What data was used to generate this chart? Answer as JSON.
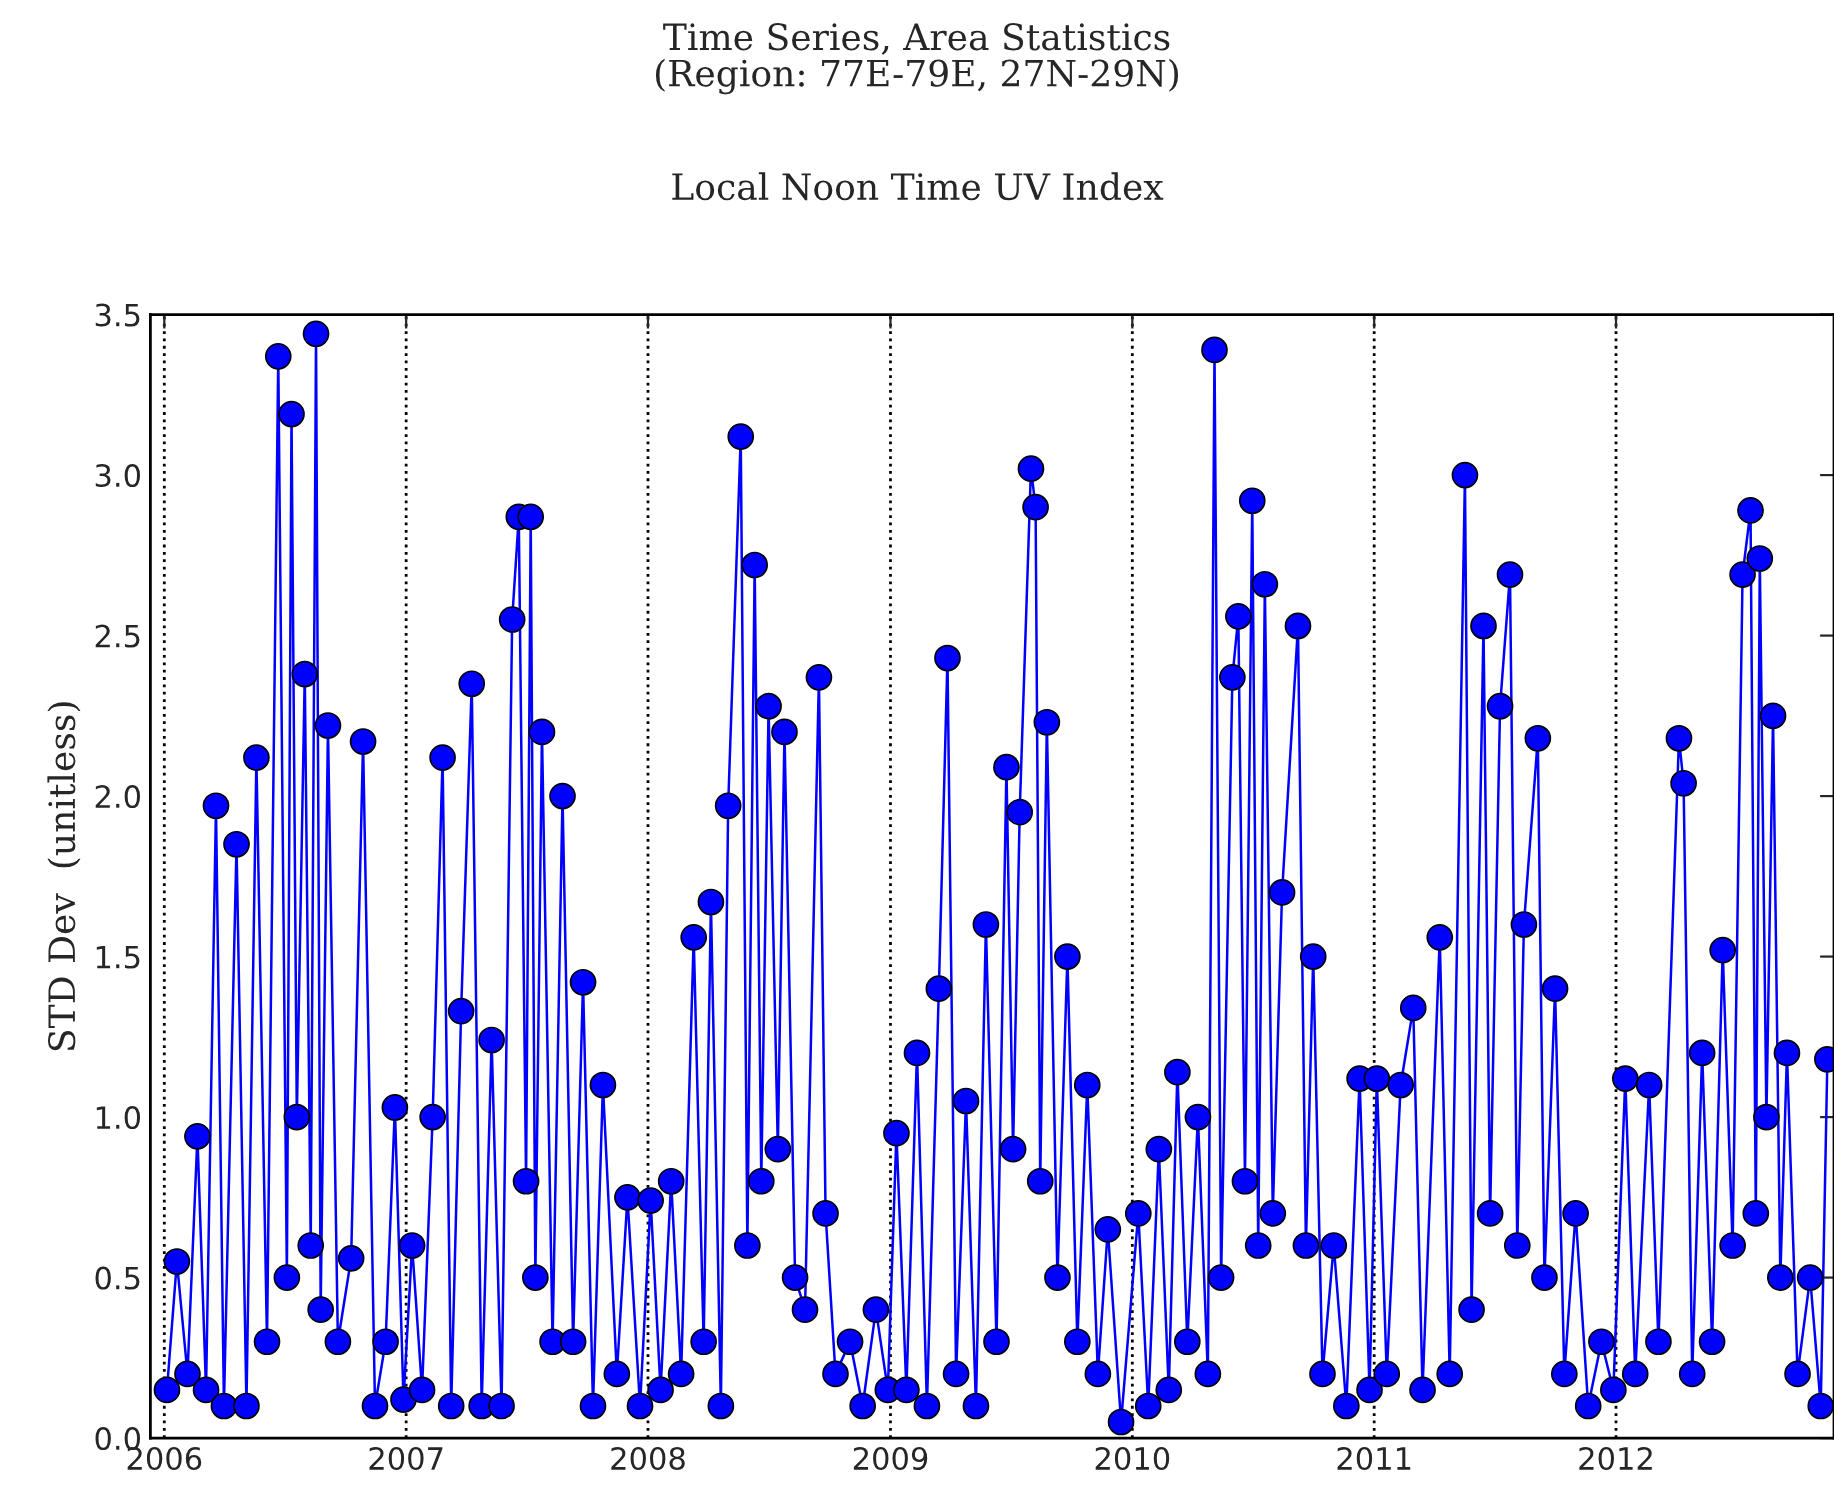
{
  "chart_data": {
    "type": "line",
    "title": "Time Series, Area Statistics\n(Region: 77E-79E, 27N-29N)",
    "subtitle": "Local Noon Time UV Index",
    "ylabel": "STD Dev  (unitless)",
    "xlim": [
      "2005-12-11",
      "2012-11-25"
    ],
    "xticks": [
      "2006",
      "2007",
      "2008",
      "2009",
      "2010",
      "2011",
      "2012"
    ],
    "ylim": [
      0,
      3.5
    ],
    "yticks": [
      {
        "value": 0,
        "label": "0.0"
      },
      {
        "value": 0.5,
        "label": "0.5"
      },
      {
        "value": 1,
        "label": "1.0"
      },
      {
        "value": 1.5,
        "label": "1.5"
      },
      {
        "value": 2,
        "label": "2.0"
      },
      {
        "value": 2.5,
        "label": "2.5"
      },
      {
        "value": 3,
        "label": "3.0"
      },
      {
        "value": 3.5,
        "label": "3.5"
      }
    ],
    "grid": "x",
    "marker": "circle",
    "line_style": "solid",
    "series": [
      {
        "color": "#0000ff",
        "x": [
          "2006-01-05",
          "2006-01-20",
          "2006-02-05",
          "2006-02-20",
          "2006-03-05",
          "2006-03-20",
          "2006-04-01",
          "2006-04-20",
          "2006-05-05",
          "2006-05-20",
          "2006-06-05",
          "2006-06-22",
          "2006-07-05",
          "2006-07-12",
          "2006-07-20",
          "2006-08-01",
          "2006-08-10",
          "2006-08-18",
          "2006-08-25",
          "2006-09-05",
          "2006-09-20",
          "2006-10-10",
          "2006-10-28",
          "2006-11-15",
          "2006-12-01",
          "2006-12-15",
          "2006-12-28",
          "2007-01-10",
          "2007-01-25",
          "2007-02-10",
          "2007-02-25",
          "2007-03-10",
          "2007-03-25",
          "2007-04-10",
          "2007-04-25",
          "2007-05-10",
          "2007-05-25",
          "2007-06-10",
          "2007-06-20",
          "2007-07-01",
          "2007-07-08",
          "2007-07-15",
          "2007-07-25",
          "2007-08-10",
          "2007-08-25",
          "2007-09-10",
          "2007-09-25",
          "2007-10-10",
          "2007-10-25",
          "2007-11-15",
          "2007-12-01",
          "2007-12-20",
          "2008-01-05",
          "2008-01-20",
          "2008-02-05",
          "2008-02-20",
          "2008-03-10",
          "2008-03-25",
          "2008-04-05",
          "2008-04-20",
          "2008-05-01",
          "2008-05-20",
          "2008-05-30",
          "2008-06-10",
          "2008-06-20",
          "2008-07-01",
          "2008-07-15",
          "2008-07-25",
          "2008-08-10",
          "2008-08-25",
          "2008-09-15",
          "2008-09-25",
          "2008-10-10",
          "2008-11-01",
          "2008-11-20",
          "2008-12-10",
          "2008-12-28",
          "2009-01-10",
          "2009-01-25",
          "2009-02-10",
          "2009-02-25",
          "2009-03-15",
          "2009-03-28",
          "2009-04-10",
          "2009-04-25",
          "2009-05-10",
          "2009-05-25",
          "2009-06-10",
          "2009-06-25",
          "2009-07-05",
          "2009-07-15",
          "2009-08-01",
          "2009-08-08",
          "2009-08-15",
          "2009-08-25",
          "2009-09-10",
          "2009-09-25",
          "2009-10-10",
          "2009-10-25",
          "2009-11-10",
          "2009-11-25",
          "2009-12-15",
          "2010-01-10",
          "2010-01-25",
          "2010-02-10",
          "2010-02-25",
          "2010-03-10",
          "2010-03-25",
          "2010-04-10",
          "2010-04-25",
          "2010-05-05",
          "2010-05-15",
          "2010-06-01",
          "2010-06-10",
          "2010-06-20",
          "2010-07-01",
          "2010-07-10",
          "2010-07-20",
          "2010-08-01",
          "2010-08-15",
          "2010-09-08",
          "2010-09-20",
          "2010-10-01",
          "2010-10-15",
          "2010-11-01",
          "2010-11-20",
          "2010-12-10",
          "2010-12-25",
          "2011-01-05",
          "2011-01-20",
          "2011-02-10",
          "2011-03-01",
          "2011-03-15",
          "2011-04-10",
          "2011-04-25",
          "2011-05-18",
          "2011-05-28",
          "2011-06-15",
          "2011-06-25",
          "2011-07-10",
          "2011-07-25",
          "2011-08-05",
          "2011-08-15",
          "2011-09-05",
          "2011-09-15",
          "2011-10-01",
          "2011-10-15",
          "2011-11-01",
          "2011-11-20",
          "2011-12-10",
          "2011-12-28",
          "2012-01-15",
          "2012-01-30",
          "2012-02-20",
          "2012-03-05",
          "2012-04-05",
          "2012-04-12",
          "2012-04-25",
          "2012-05-10",
          "2012-05-25",
          "2012-06-10",
          "2012-06-25",
          "2012-07-10",
          "2012-07-22",
          "2012-07-30",
          "2012-08-05",
          "2012-08-15",
          "2012-08-25",
          "2012-09-05",
          "2012-09-15",
          "2012-10-01",
          "2012-10-20",
          "2012-11-05",
          "2012-11-15"
        ],
        "values": [
          0.15,
          0.55,
          0.2,
          0.94,
          0.15,
          1.97,
          0.1,
          1.85,
          0.1,
          2.12,
          0.3,
          3.37,
          0.5,
          3.19,
          1.0,
          2.38,
          0.6,
          3.44,
          0.4,
          2.22,
          0.3,
          0.56,
          2.17,
          0.1,
          0.3,
          1.03,
          0.12,
          0.6,
          0.15,
          1.0,
          2.12,
          0.1,
          1.33,
          2.35,
          0.1,
          1.24,
          0.1,
          2.55,
          2.87,
          0.8,
          2.87,
          0.5,
          2.2,
          0.3,
          2.0,
          0.3,
          1.42,
          0.1,
          1.1,
          0.2,
          0.75,
          0.1,
          0.74,
          0.15,
          0.8,
          0.2,
          1.56,
          0.3,
          1.67,
          0.1,
          1.97,
          3.12,
          0.6,
          2.72,
          0.8,
          2.28,
          0.9,
          2.2,
          0.5,
          0.4,
          2.37,
          0.7,
          0.2,
          0.3,
          0.1,
          0.4,
          0.15,
          0.95,
          0.15,
          1.2,
          0.1,
          1.4,
          2.43,
          0.2,
          1.05,
          0.1,
          1.6,
          0.3,
          2.09,
          0.9,
          1.95,
          3.02,
          2.9,
          0.8,
          2.23,
          0.5,
          1.5,
          0.3,
          1.1,
          0.2,
          0.65,
          0.05,
          0.7,
          0.1,
          0.9,
          0.15,
          1.14,
          0.3,
          1.0,
          0.2,
          3.39,
          0.5,
          2.37,
          2.56,
          0.8,
          2.92,
          0.6,
          2.66,
          0.7,
          1.7,
          2.53,
          0.6,
          1.5,
          0.2,
          0.6,
          0.1,
          1.12,
          0.15,
          1.12,
          0.2,
          1.1,
          1.34,
          0.15,
          1.56,
          0.2,
          3.0,
          0.4,
          2.53,
          0.7,
          2.28,
          2.69,
          0.6,
          1.6,
          2.18,
          0.5,
          1.4,
          0.2,
          0.7,
          0.1,
          0.3,
          0.15,
          1.12,
          0.2,
          1.1,
          0.3,
          2.18,
          2.04,
          0.2,
          1.2,
          0.3,
          1.52,
          0.6,
          2.69,
          2.89,
          0.7,
          2.74,
          1.0,
          2.25,
          0.5,
          1.2,
          0.2,
          0.5,
          0.1,
          1.18
        ]
      }
    ]
  }
}
